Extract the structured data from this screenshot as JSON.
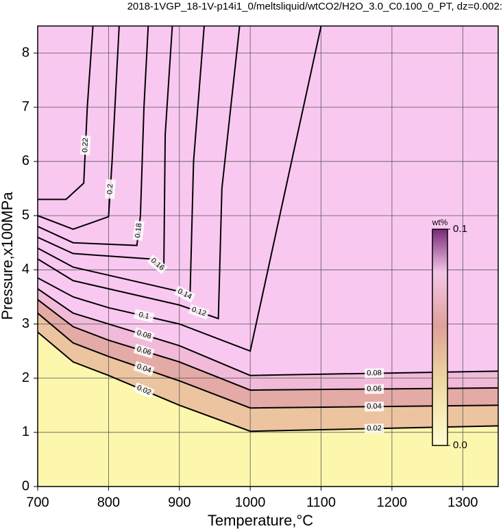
{
  "chart_data": {
    "type": "contour",
    "title": "2018-1VGP_18-1V-p14i1_0/meltsliquid/wtCO2/H2O_3.0_C0.100_0_PT, dz=0.002:",
    "x_label": "Temperature,°C",
    "y_label": "Pressure,x100MPa",
    "xlim": [
      700,
      1350
    ],
    "ylim": [
      0,
      8.5
    ],
    "xticks": [
      700,
      800,
      900,
      1000,
      1100,
      1200,
      1300
    ],
    "yticks": [
      0,
      1,
      2,
      3,
      4,
      5,
      6,
      7,
      8
    ],
    "grid": true,
    "colorbar_label": "wt%",
    "clim": [
      0,
      0.1
    ],
    "cticks": [
      {
        "value": 0,
        "label": "0.0"
      },
      0.1
    ],
    "contours": [
      {
        "level": 0.02,
        "x": [
          700,
          750,
          800,
          900,
          1000,
          1350
        ],
        "y": [
          2.85,
          2.3,
          2.05,
          1.5,
          1.02,
          1.12
        ]
      },
      {
        "level": 0.04,
        "x": [
          700,
          750,
          800,
          900,
          1000,
          1350
        ],
        "y": [
          3.2,
          2.65,
          2.4,
          1.95,
          1.45,
          1.5
        ]
      },
      {
        "level": 0.06,
        "x": [
          700,
          750,
          800,
          900,
          1000,
          1350
        ],
        "y": [
          3.45,
          2.95,
          2.7,
          2.3,
          1.78,
          1.82
        ]
      },
      {
        "level": 0.08,
        "x": [
          700,
          750,
          800,
          900,
          1000,
          1350
        ],
        "y": [
          3.65,
          3.2,
          3.0,
          2.6,
          2.05,
          2.13
        ]
      },
      {
        "level": 0.1,
        "x": [
          700,
          750,
          800,
          900,
          1000,
          1100
        ],
        "y": [
          3.85,
          3.5,
          3.3,
          3.0,
          2.5,
          8.5
        ]
      },
      {
        "level": 0.12,
        "x": [
          700,
          750,
          900,
          955,
          960,
          985
        ],
        "y": [
          4.2,
          3.8,
          3.35,
          3.1,
          5.5,
          8.5
        ]
      },
      {
        "level": 0.14,
        "x": [
          700,
          750,
          900,
          915,
          920,
          935
        ],
        "y": [
          4.4,
          4.05,
          3.6,
          3.5,
          6.0,
          8.5
        ]
      },
      {
        "level": 0.16,
        "x": [
          700,
          750,
          860,
          878,
          880,
          890
        ],
        "y": [
          4.6,
          4.3,
          4.2,
          4.0,
          6.5,
          8.5
        ]
      },
      {
        "level": 0.18,
        "x": [
          700,
          750,
          840,
          845,
          850,
          856
        ],
        "y": [
          4.8,
          4.5,
          4.45,
          5.0,
          7.0,
          8.5
        ]
      },
      {
        "level": 0.2,
        "x": [
          700,
          750,
          800,
          805,
          815
        ],
        "y": [
          5.0,
          4.75,
          4.98,
          6.0,
          8.5
        ]
      },
      {
        "level": 0.22,
        "x": [
          700,
          740,
          765,
          770,
          778
        ],
        "y": [
          5.3,
          5.3,
          5.6,
          7.0,
          8.5
        ]
      }
    ]
  }
}
